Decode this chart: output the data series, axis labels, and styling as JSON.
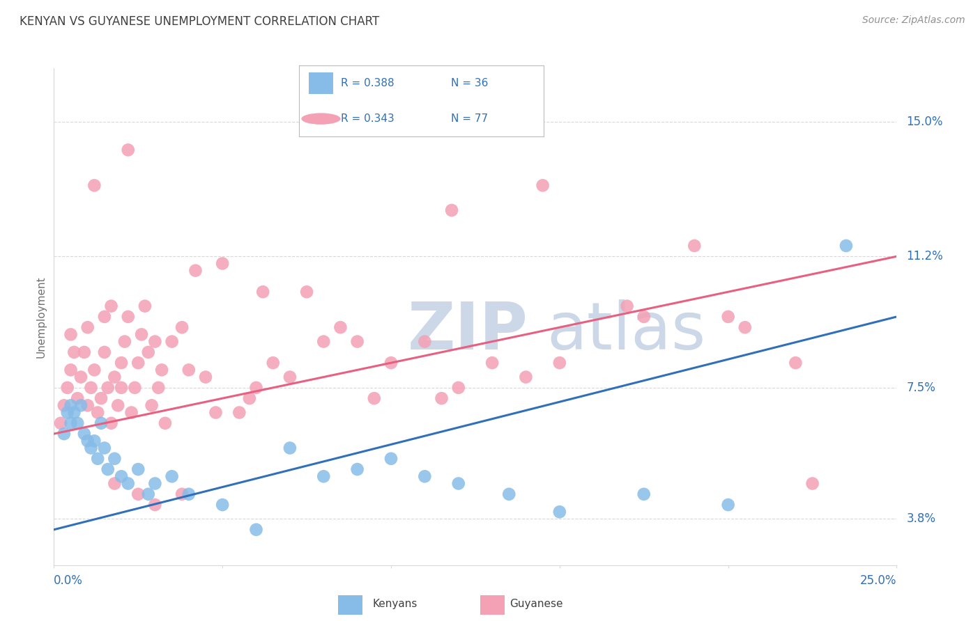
{
  "title": "KENYAN VS GUYANESE UNEMPLOYMENT CORRELATION CHART",
  "source": "Source: ZipAtlas.com",
  "ylabel": "Unemployment",
  "ytick_labels": [
    "3.8%",
    "7.5%",
    "11.2%",
    "15.0%"
  ],
  "ytick_values": [
    3.8,
    7.5,
    11.2,
    15.0
  ],
  "xlim": [
    0.0,
    25.0
  ],
  "ylim": [
    2.5,
    16.5
  ],
  "kenyan_color": "#87BCE8",
  "guyanese_color": "#F4A0B5",
  "kenyan_line_color": "#3070B8",
  "guyanese_line_color": "#E86080",
  "label_color": "#3070B8",
  "grid_color": "#d8d8d8",
  "title_color": "#404040",
  "source_color": "#909090",
  "ylabel_color": "#707070",
  "watermark_color": "#ccd8e8",
  "kenyan_line_x0": 0.0,
  "kenyan_line_y0": 3.5,
  "kenyan_line_x1": 25.0,
  "kenyan_line_y1": 9.5,
  "guyanese_line_x0": 0.0,
  "guyanese_line_y0": 6.2,
  "guyanese_line_x1": 25.0,
  "guyanese_line_y1": 11.2,
  "kenyan_x": [
    0.3,
    0.4,
    0.5,
    0.5,
    0.6,
    0.7,
    0.8,
    0.9,
    1.0,
    1.1,
    1.2,
    1.3,
    1.4,
    1.5,
    1.6,
    1.8,
    2.0,
    2.2,
    2.5,
    2.8,
    3.0,
    3.5,
    4.0,
    5.0,
    6.0,
    7.0,
    8.0,
    9.0,
    10.0,
    11.0,
    12.0,
    13.5,
    15.0,
    17.5,
    20.0,
    23.5
  ],
  "kenyan_y": [
    6.2,
    6.8,
    7.0,
    6.5,
    6.8,
    6.5,
    7.0,
    6.2,
    6.0,
    5.8,
    6.0,
    5.5,
    6.5,
    5.8,
    5.2,
    5.5,
    5.0,
    4.8,
    5.2,
    4.5,
    4.8,
    5.0,
    4.5,
    4.2,
    3.5,
    5.8,
    5.0,
    5.2,
    5.5,
    5.0,
    4.8,
    4.5,
    4.0,
    4.5,
    4.2,
    11.5
  ],
  "guyanese_x": [
    0.2,
    0.3,
    0.4,
    0.5,
    0.5,
    0.6,
    0.7,
    0.8,
    0.9,
    1.0,
    1.0,
    1.1,
    1.2,
    1.3,
    1.4,
    1.5,
    1.5,
    1.6,
    1.7,
    1.7,
    1.8,
    1.9,
    2.0,
    2.0,
    2.1,
    2.2,
    2.3,
    2.4,
    2.5,
    2.6,
    2.7,
    2.8,
    2.9,
    3.0,
    3.1,
    3.2,
    3.3,
    3.5,
    3.8,
    4.0,
    4.2,
    4.5,
    5.0,
    5.5,
    5.8,
    6.0,
    6.5,
    7.0,
    7.5,
    8.0,
    8.5,
    9.0,
    10.0,
    11.0,
    11.5,
    12.0,
    13.0,
    14.0,
    15.0,
    17.0,
    19.0,
    20.5,
    22.0,
    2.5,
    3.0,
    1.8,
    4.8,
    6.2,
    9.5,
    11.8,
    14.5,
    17.5,
    20.0,
    22.5,
    3.8,
    1.2,
    2.2
  ],
  "guyanese_y": [
    6.5,
    7.0,
    7.5,
    8.0,
    9.0,
    8.5,
    7.2,
    7.8,
    8.5,
    9.2,
    7.0,
    7.5,
    8.0,
    6.8,
    7.2,
    8.5,
    9.5,
    7.5,
    9.8,
    6.5,
    7.8,
    7.0,
    7.5,
    8.2,
    8.8,
    9.5,
    6.8,
    7.5,
    8.2,
    9.0,
    9.8,
    8.5,
    7.0,
    8.8,
    7.5,
    8.0,
    6.5,
    8.8,
    9.2,
    8.0,
    10.8,
    7.8,
    11.0,
    6.8,
    7.2,
    7.5,
    8.2,
    7.8,
    10.2,
    8.8,
    9.2,
    8.8,
    8.2,
    8.8,
    7.2,
    7.5,
    8.2,
    7.8,
    8.2,
    9.8,
    11.5,
    9.2,
    8.2,
    4.5,
    4.2,
    4.8,
    6.8,
    10.2,
    7.2,
    12.5,
    13.2,
    9.5,
    9.5,
    4.8,
    4.5,
    13.2,
    14.2
  ]
}
